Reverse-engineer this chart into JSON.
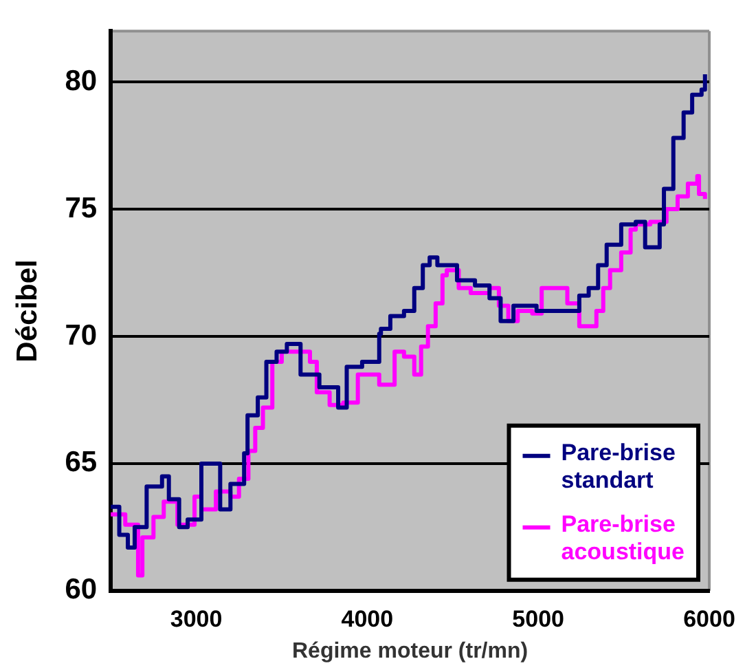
{
  "chart_data": {
    "type": "step",
    "xlabel": "Régime moteur (tr/mn)",
    "ylabel": "Décibel",
    "xlim": [
      2500,
      6000
    ],
    "xticks": [
      3000,
      4000,
      5000,
      6000
    ],
    "ylim": [
      60,
      82
    ],
    "yticks": [
      60,
      65,
      70,
      75,
      80
    ],
    "grid": "y",
    "legend": "bottom right",
    "marker": "none",
    "series": [
      {
        "name": "Pare-brise standart",
        "color": "#000080",
        "x": [
          2500,
          2550,
          2600,
          2640,
          2710,
          2800,
          2840,
          2900,
          2950,
          3030,
          3110,
          3140,
          3200,
          3280,
          3300,
          3360,
          3410,
          3470,
          3530,
          3610,
          3720,
          3830,
          3880,
          3970,
          4070,
          4080,
          4135,
          4215,
          4275,
          4325,
          4365,
          4410,
          4525,
          4630,
          4715,
          4780,
          4855,
          4990,
          5100,
          5210,
          5240,
          5295,
          5350,
          5400,
          5485,
          5570,
          5625,
          5710,
          5735,
          5790,
          5850,
          5900,
          5955,
          5975
        ],
        "values": [
          63.3,
          62.2,
          61.7,
          62.5,
          64.1,
          64.5,
          63.6,
          62.5,
          62.8,
          65.0,
          65.0,
          63.2,
          64.2,
          65.4,
          66.9,
          67.6,
          69.0,
          69.4,
          69.7,
          68.5,
          68.0,
          67.2,
          68.8,
          69.0,
          70.1,
          70.3,
          70.8,
          71.0,
          71.9,
          72.8,
          73.1,
          72.8,
          72.2,
          72.0,
          71.5,
          70.6,
          71.2,
          71.0,
          71.0,
          71.0,
          71.6,
          71.9,
          72.8,
          73.6,
          74.4,
          74.5,
          73.5,
          74.4,
          75.8,
          77.8,
          78.8,
          79.5,
          79.7,
          80.3
        ]
      },
      {
        "name": "Pare-brise acoustique",
        "color": "#ff00ff",
        "x": [
          2500,
          2585,
          2660,
          2685,
          2750,
          2810,
          2890,
          2990,
          3030,
          3115,
          3200,
          3250,
          3305,
          3345,
          3390,
          3445,
          3500,
          3580,
          3665,
          3705,
          3780,
          3860,
          3945,
          4070,
          4160,
          4215,
          4275,
          4315,
          4355,
          4400,
          4440,
          4465,
          4535,
          4605,
          4715,
          4770,
          4825,
          4880,
          4965,
          5020,
          5100,
          5170,
          5240,
          5295,
          5340,
          5380,
          5420,
          5485,
          5540,
          5570,
          5655,
          5750,
          5815,
          5875,
          5930,
          5940,
          5975
        ],
        "values": [
          63.0,
          62.6,
          60.6,
          62.1,
          62.9,
          63.5,
          62.6,
          63.7,
          63.2,
          63.9,
          63.7,
          64.4,
          65.5,
          66.4,
          67.2,
          69.0,
          69.4,
          69.4,
          69.0,
          67.8,
          67.3,
          67.4,
          68.5,
          68.1,
          69.4,
          69.2,
          68.5,
          69.6,
          70.4,
          71.3,
          72.4,
          72.6,
          71.9,
          71.7,
          71.9,
          71.2,
          70.6,
          71.0,
          70.9,
          71.9,
          71.9,
          71.3,
          70.4,
          70.4,
          71.0,
          71.9,
          72.6,
          73.3,
          74.2,
          74.4,
          74.5,
          75.0,
          75.5,
          76.0,
          76.3,
          75.6,
          75.4
        ]
      }
    ]
  }
}
